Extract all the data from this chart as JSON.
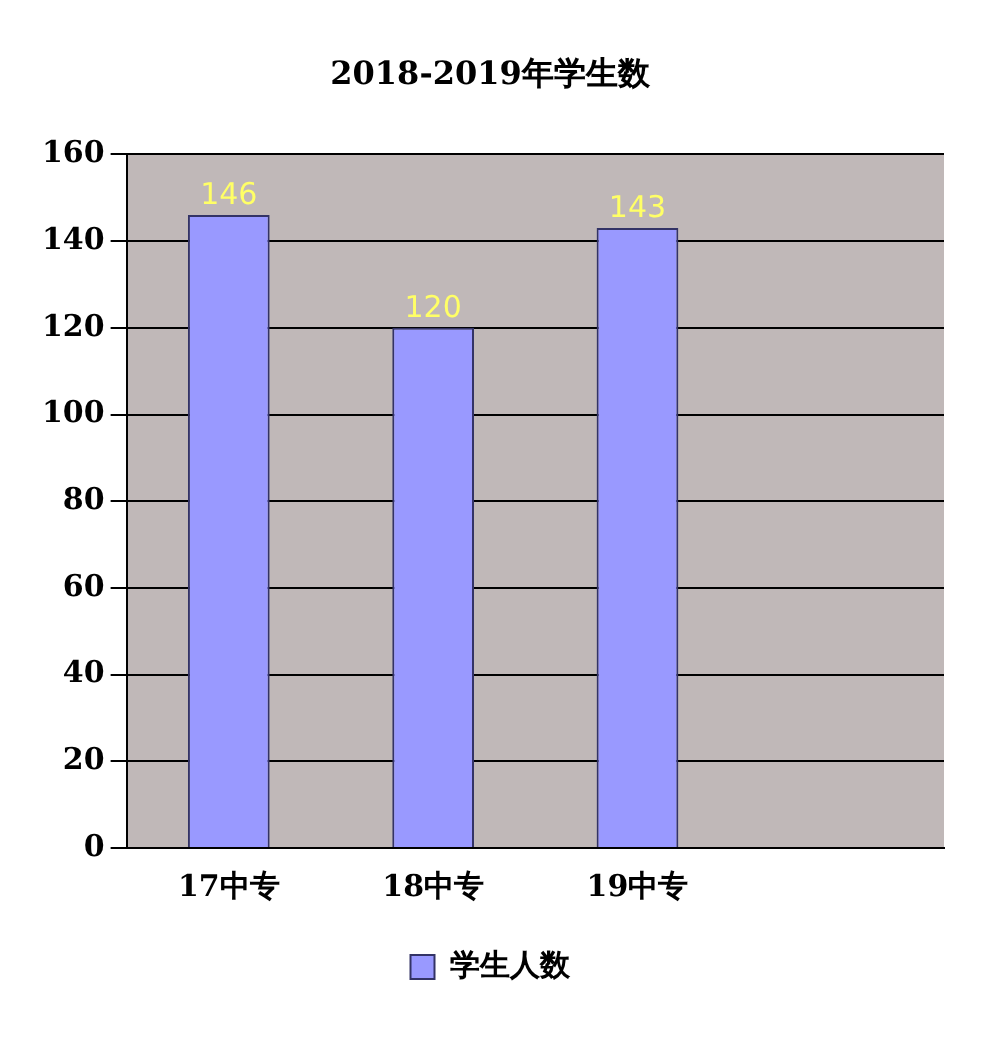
{
  "chart_data": {
    "type": "bar",
    "title": "2018-2019年学生数",
    "categories": [
      "17中专",
      "18中专",
      "19中专",
      null
    ],
    "series": [
      {
        "name": "学生人数",
        "color": "#9999ff",
        "values": [
          146,
          120,
          143,
          null
        ]
      }
    ],
    "ylim": [
      0,
      160
    ],
    "yticks": [
      0,
      20,
      40,
      60,
      80,
      100,
      120,
      140,
      160
    ],
    "grid": "y",
    "legend": "bottom",
    "data_labels": true
  }
}
